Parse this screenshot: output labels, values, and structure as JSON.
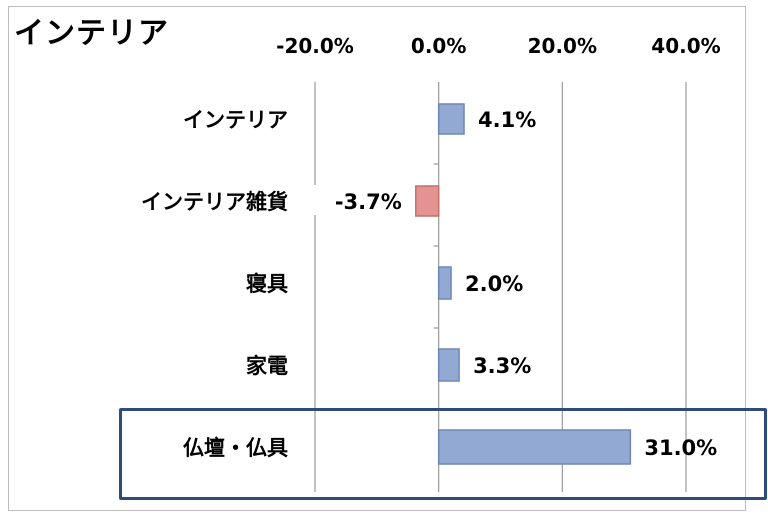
{
  "chart_data": {
    "type": "bar",
    "orientation": "horizontal",
    "title": "インテリア",
    "categories": [
      "インテリア",
      "インテリア雑貨",
      "寝具",
      "家電",
      "仏壇・仏具"
    ],
    "values": [
      4.1,
      -3.7,
      2.0,
      3.3,
      31.0
    ],
    "data_labels": [
      "4.1%",
      "-3.7%",
      "2.0%",
      "3.3%",
      "31.0%"
    ],
    "x_ticks": [
      -20,
      0,
      20,
      40
    ],
    "x_tick_labels": [
      "-20.0%",
      "0.0%",
      "20.0%",
      "40.0%"
    ],
    "xlim": [
      -20,
      40
    ],
    "x_axis_position": "top",
    "grid": true,
    "highlighted_category": "仏壇・仏具",
    "colors": {
      "positive": "#92a9d4",
      "negative": "#e39392",
      "positive_edge": "#6f87b5",
      "negative_edge": "#c26f6e",
      "grid": "#9a9a9a",
      "highlight": "#2f4b7c"
    }
  }
}
